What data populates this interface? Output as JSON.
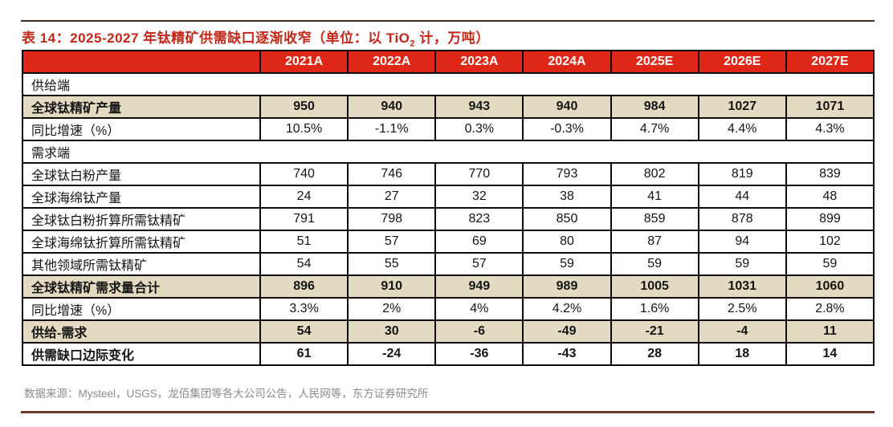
{
  "title": {
    "text_before_sub": "表 14：2025-2027 年钛精矿供需缺口逐渐收窄（单位：以 TiO",
    "sub": "2",
    "text_after_sub": " 计，万吨）"
  },
  "table": {
    "corner_label": "",
    "columns": [
      "2021A",
      "2022A",
      "2023A",
      "2024A",
      "2025E",
      "2026E",
      "2027E"
    ],
    "rows": [
      {
        "label": "供给端",
        "type": "section",
        "values": []
      },
      {
        "label": "全球钛精矿产量",
        "type": "highlight",
        "values": [
          "950",
          "940",
          "943",
          "940",
          "984",
          "1027",
          "1071"
        ]
      },
      {
        "label": "同比增速（%）",
        "type": "normal",
        "values": [
          "10.5%",
          "-1.1%",
          "0.3%",
          "-0.3%",
          "4.7%",
          "4.4%",
          "4.3%"
        ]
      },
      {
        "label": "需求端",
        "type": "section",
        "values": []
      },
      {
        "label": "全球钛白粉产量",
        "type": "normal",
        "values": [
          "740",
          "746",
          "770",
          "793",
          "802",
          "819",
          "839"
        ]
      },
      {
        "label": "全球海绵钛产量",
        "type": "normal",
        "values": [
          "24",
          "27",
          "32",
          "38",
          "41",
          "44",
          "48"
        ]
      },
      {
        "label": "全球钛白粉折算所需钛精矿",
        "type": "normal",
        "values": [
          "791",
          "798",
          "823",
          "850",
          "859",
          "878",
          "899"
        ]
      },
      {
        "label": "全球海绵钛折算所需钛精矿",
        "type": "normal",
        "values": [
          "51",
          "57",
          "69",
          "80",
          "87",
          "94",
          "102"
        ]
      },
      {
        "label": "其他领域所需钛精矿",
        "type": "normal",
        "values": [
          "54",
          "55",
          "57",
          "59",
          "59",
          "59",
          "59"
        ]
      },
      {
        "label": "全球钛精矿需求量合计",
        "type": "highlight",
        "values": [
          "896",
          "910",
          "949",
          "989",
          "1005",
          "1031",
          "1060"
        ]
      },
      {
        "label": "同比增速（%）",
        "type": "normal",
        "values": [
          "3.3%",
          "2%",
          "4%",
          "4.2%",
          "1.6%",
          "2.5%",
          "2.8%"
        ]
      },
      {
        "label": "供给-需求",
        "type": "highlight",
        "values": [
          "54",
          "30",
          "-6",
          "-49",
          "-21",
          "-4",
          "11"
        ]
      },
      {
        "label": "供需缺口边际变化",
        "type": "boldrow",
        "values": [
          "61",
          "-24",
          "-36",
          "-43",
          "28",
          "18",
          "14"
        ]
      }
    ]
  },
  "source": "数据来源：Mysteel，USGS，龙佰集团等各大公司公告，人民网等，东方证券研究所",
  "colors": {
    "header_bg": "#df2718",
    "header_text": "#ffffff",
    "highlight_bg": "#e3dac2",
    "title_red": "#c2271a",
    "border_black": "#0d0d0d",
    "rule_top": "#402a20",
    "rule_bottom": "#6e3a2d",
    "source_gray": "#8c8c8c"
  }
}
